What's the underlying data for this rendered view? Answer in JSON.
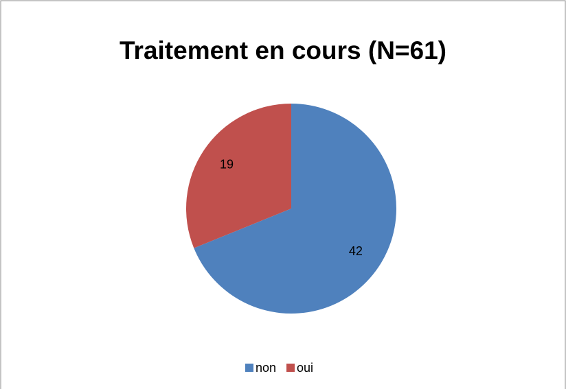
{
  "chart_data": {
    "type": "pie",
    "title": "Traitement en cours (N=61)",
    "categories": [
      "non",
      "oui"
    ],
    "values": [
      42,
      19
    ],
    "colors": [
      "#4f81bd",
      "#c0504d"
    ],
    "legend": "bottom"
  }
}
